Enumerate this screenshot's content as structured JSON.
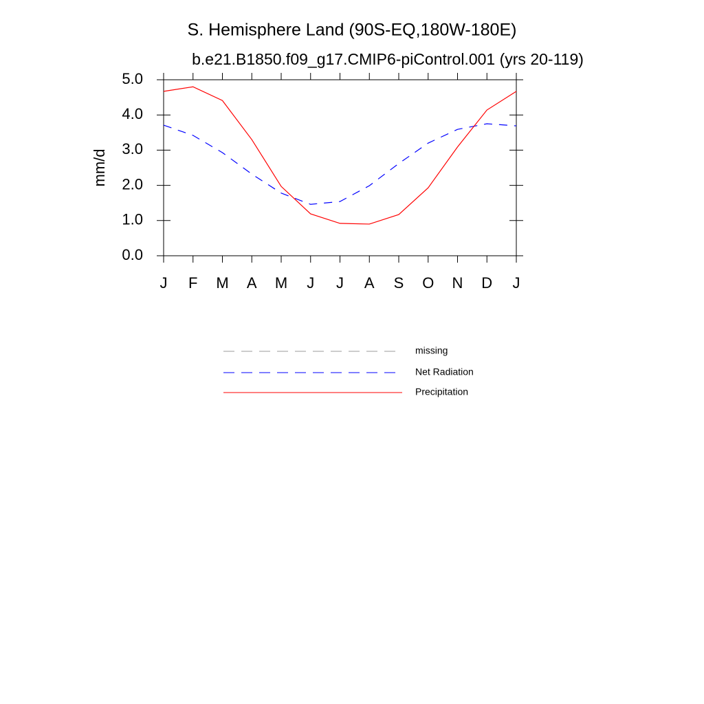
{
  "chart_data": {
    "type": "line",
    "title": "S. Hemisphere Land (90S-EQ,180W-180E)",
    "subtitle": "b.e21.B1850.f09_g17.CMIP6-piControl.001 (yrs 20-119)",
    "y_label": "mm/d",
    "categories": [
      "J",
      "F",
      "M",
      "A",
      "M",
      "J",
      "J",
      "A",
      "S",
      "O",
      "N",
      "D",
      "J"
    ],
    "series": [
      {
        "name": "missing",
        "color": "#999999",
        "dash": true,
        "values": [
          null,
          null,
          null,
          null,
          null,
          null,
          null,
          null,
          null,
          null,
          null,
          null,
          null
        ]
      },
      {
        "name": "Net Radiation",
        "color": "#0000ff",
        "dash": true,
        "values": [
          3.71,
          3.42,
          2.93,
          2.32,
          1.78,
          1.46,
          1.54,
          1.99,
          2.62,
          3.2,
          3.59,
          3.75,
          3.69
        ]
      },
      {
        "name": "Precipitation",
        "color": "#ff0000",
        "dash": false,
        "values": [
          4.67,
          4.8,
          4.41,
          3.3,
          1.97,
          1.19,
          0.92,
          0.9,
          1.17,
          1.93,
          3.09,
          4.14,
          4.67
        ]
      }
    ],
    "ylim": [
      0,
      5
    ],
    "yticks": [
      {
        "value": 0,
        "label": "0.0"
      },
      {
        "value": 1,
        "label": "1.0"
      },
      {
        "value": 2,
        "label": "2.0"
      },
      {
        "value": 3,
        "label": "3.0"
      },
      {
        "value": 4,
        "label": "4.0"
      },
      {
        "value": 5,
        "label": "5.0"
      }
    ],
    "grid": false
  }
}
